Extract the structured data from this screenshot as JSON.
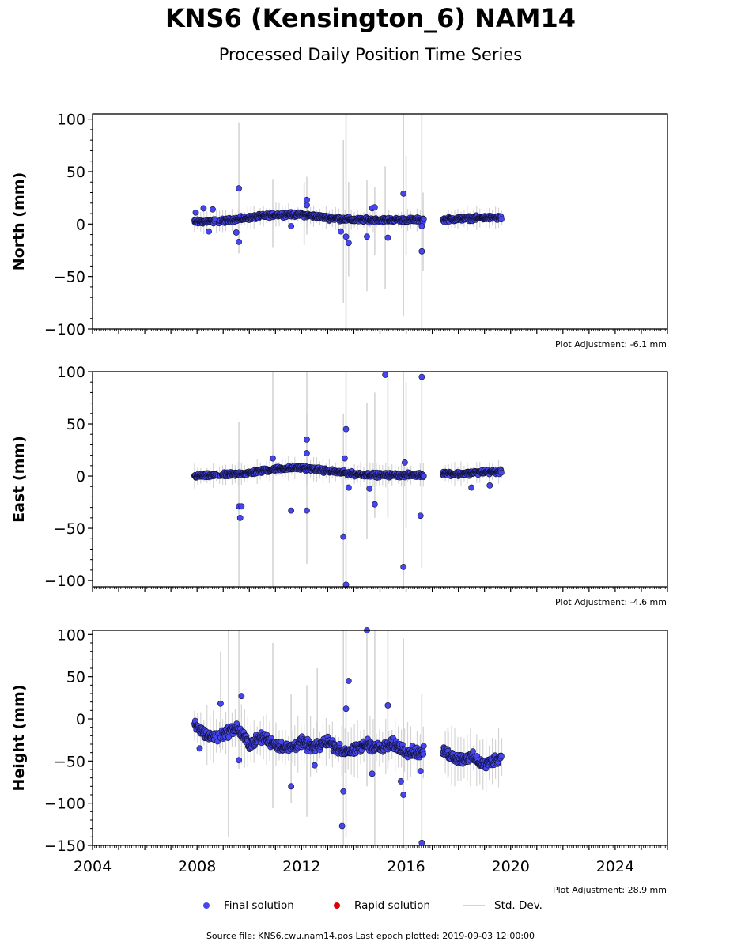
{
  "title": "KNS6 (Kensington_6) NAM14",
  "subtitle": "Processed Daily Position Time Series",
  "colors": {
    "final": "#4646f0",
    "rapid": "#e00000",
    "stddev": "#d4d4d4",
    "edge": "#111133"
  },
  "legend": {
    "final": "Final solution",
    "rapid": "Rapid solution",
    "stddev": "Std. Dev."
  },
  "source_text": "Source file: KNS6.cwu.nam14.pos  Last epoch plotted: 2019-09-03 12:00:00",
  "chart_data": [
    {
      "type": "scatter",
      "ylabel": "North (mm)",
      "adjustment": "Plot Adjustment: -6.1 mm",
      "xlim": [
        2004,
        2026
      ],
      "ylim": [
        -100,
        105
      ],
      "yticks": [
        -100,
        -50,
        0,
        50,
        100
      ],
      "yminor": 10,
      "trend": [
        [
          2007.9,
          2
        ],
        [
          2009,
          3
        ],
        [
          2010,
          6
        ],
        [
          2011,
          9
        ],
        [
          2012,
          9
        ],
        [
          2013,
          6
        ],
        [
          2014,
          4
        ],
        [
          2015,
          4
        ],
        [
          2016,
          4
        ],
        [
          2016.7,
          4
        ],
        [
          2017.4,
          4
        ],
        [
          2018,
          5
        ],
        [
          2019,
          6
        ],
        [
          2019.7,
          6
        ]
      ],
      "spread": 3,
      "outliers": [
        [
          2007.95,
          11
        ],
        [
          2008.25,
          15
        ],
        [
          2008.6,
          14
        ],
        [
          2008.45,
          -7
        ],
        [
          2009.6,
          34
        ],
        [
          2009.6,
          -17
        ],
        [
          2009.5,
          -8
        ],
        [
          2011.6,
          -2
        ],
        [
          2012.2,
          23
        ],
        [
          2012.2,
          18
        ],
        [
          2013.5,
          -7
        ],
        [
          2013.7,
          -12
        ],
        [
          2013.8,
          -18
        ],
        [
          2014.5,
          -12
        ],
        [
          2014.7,
          15
        ],
        [
          2014.8,
          16
        ],
        [
          2015.3,
          -13
        ],
        [
          2015.9,
          29
        ],
        [
          2016.6,
          -26
        ],
        [
          2016.6,
          -2
        ]
      ],
      "errorbars": [
        [
          2009.6,
          -28,
          97
        ],
        [
          2010.9,
          -22,
          43
        ],
        [
          2012.1,
          -20,
          40
        ],
        [
          2012.2,
          -10,
          45
        ],
        [
          2013.6,
          -75,
          80
        ],
        [
          2013.7,
          -100,
          105
        ],
        [
          2013.8,
          -50,
          40
        ],
        [
          2014.5,
          -64,
          42
        ],
        [
          2014.8,
          -30,
          35
        ],
        [
          2015.2,
          -62,
          55
        ],
        [
          2015.9,
          -88,
          105
        ],
        [
          2016.0,
          -30,
          65
        ],
        [
          2016.6,
          -100,
          105
        ],
        [
          2016.65,
          -45,
          30
        ]
      ]
    },
    {
      "type": "scatter",
      "ylabel": "East (mm)",
      "adjustment": "Plot Adjustment: -4.6 mm",
      "xlim": [
        2004,
        2026
      ],
      "ylim": [
        -106,
        100
      ],
      "yticks": [
        -100,
        -50,
        0,
        50,
        100
      ],
      "yminor": 10,
      "trend": [
        [
          2007.9,
          0
        ],
        [
          2009,
          1
        ],
        [
          2010,
          3
        ],
        [
          2011,
          7
        ],
        [
          2012,
          8
        ],
        [
          2013,
          5
        ],
        [
          2014,
          2
        ],
        [
          2015,
          1
        ],
        [
          2016,
          1
        ],
        [
          2016.7,
          1
        ],
        [
          2017.4,
          3
        ],
        [
          2018,
          2
        ],
        [
          2019,
          4
        ],
        [
          2019.7,
          4
        ]
      ],
      "spread": 3,
      "outliers": [
        [
          2009.6,
          -29
        ],
        [
          2009.7,
          -29
        ],
        [
          2009.65,
          -40
        ],
        [
          2010.9,
          17
        ],
        [
          2011.6,
          -33
        ],
        [
          2012.2,
          35
        ],
        [
          2012.2,
          22
        ],
        [
          2012.2,
          -33
        ],
        [
          2013.6,
          -58
        ],
        [
          2013.7,
          45
        ],
        [
          2013.65,
          17
        ],
        [
          2013.7,
          -104
        ],
        [
          2013.8,
          -11
        ],
        [
          2014.6,
          -12
        ],
        [
          2014.8,
          -27
        ],
        [
          2015.2,
          97
        ],
        [
          2015.9,
          -87
        ],
        [
          2015.95,
          13
        ],
        [
          2016.6,
          95
        ],
        [
          2016.55,
          -38
        ],
        [
          2018.5,
          -11
        ],
        [
          2019.2,
          -9
        ]
      ],
      "errorbars": [
        [
          2009.6,
          -106,
          52
        ],
        [
          2010.9,
          -106,
          100
        ],
        [
          2012.2,
          -84,
          100
        ],
        [
          2012.2,
          -10,
          60
        ],
        [
          2013.6,
          -106,
          60
        ],
        [
          2013.7,
          -106,
          100
        ],
        [
          2014.5,
          -60,
          70
        ],
        [
          2014.8,
          -40,
          80
        ],
        [
          2015.3,
          -40,
          100
        ],
        [
          2015.9,
          -106,
          100
        ],
        [
          2016.0,
          -50,
          90
        ],
        [
          2016.6,
          -88,
          100
        ]
      ]
    },
    {
      "type": "scatter",
      "ylabel": "Height (mm)",
      "adjustment": "Plot Adjustment: 28.9 mm",
      "xlim": [
        2004,
        2026
      ],
      "ylim": [
        -150,
        105
      ],
      "yticks": [
        -150,
        -100,
        -50,
        0,
        50,
        100
      ],
      "yminor": 10,
      "xticks": [
        2004,
        2008,
        2012,
        2016,
        2020,
        2024
      ],
      "trend": [
        [
          2007.9,
          -8
        ],
        [
          2008.5,
          -22
        ],
        [
          2009,
          -18
        ],
        [
          2009.5,
          -10
        ],
        [
          2010,
          -30
        ],
        [
          2010.5,
          -22
        ],
        [
          2011,
          -30
        ],
        [
          2011.5,
          -35
        ],
        [
          2012,
          -28
        ],
        [
          2012.5,
          -35
        ],
        [
          2013,
          -26
        ],
        [
          2013.5,
          -38
        ],
        [
          2014,
          -38
        ],
        [
          2014.5,
          -30
        ],
        [
          2015,
          -35
        ],
        [
          2015.5,
          -30
        ],
        [
          2016,
          -38
        ],
        [
          2016.6,
          -40
        ],
        [
          2017.4,
          -38
        ],
        [
          2018,
          -48
        ],
        [
          2018.5,
          -45
        ],
        [
          2019,
          -55
        ],
        [
          2019.6,
          -45
        ]
      ],
      "spread": 9,
      "outliers": [
        [
          2008.1,
          -35
        ],
        [
          2008.9,
          18
        ],
        [
          2009.7,
          27
        ],
        [
          2009.6,
          -49
        ],
        [
          2011.6,
          -80
        ],
        [
          2012.5,
          -55
        ],
        [
          2013.6,
          -86
        ],
        [
          2013.55,
          -127
        ],
        [
          2013.7,
          12
        ],
        [
          2013.8,
          45
        ],
        [
          2014.5,
          105
        ],
        [
          2014.7,
          -65
        ],
        [
          2015.3,
          16
        ],
        [
          2015.8,
          -74
        ],
        [
          2015.9,
          -90
        ],
        [
          2016.6,
          -147
        ],
        [
          2016.55,
          -62
        ]
      ],
      "errorbars": [
        [
          2008.9,
          -40,
          80
        ],
        [
          2009.2,
          -140,
          105
        ],
        [
          2009.6,
          -60,
          105
        ],
        [
          2010.9,
          -106,
          90
        ],
        [
          2011.6,
          -100,
          30
        ],
        [
          2012.2,
          -116,
          40
        ],
        [
          2012.6,
          -50,
          60
        ],
        [
          2013.6,
          -150,
          105
        ],
        [
          2013.7,
          -140,
          105
        ],
        [
          2014.5,
          -80,
          105
        ],
        [
          2014.8,
          -150,
          105
        ],
        [
          2015.3,
          -60,
          105
        ],
        [
          2015.9,
          -150,
          95
        ],
        [
          2016.6,
          -150,
          30
        ],
        [
          2017.6,
          -70,
          -10
        ]
      ]
    }
  ]
}
